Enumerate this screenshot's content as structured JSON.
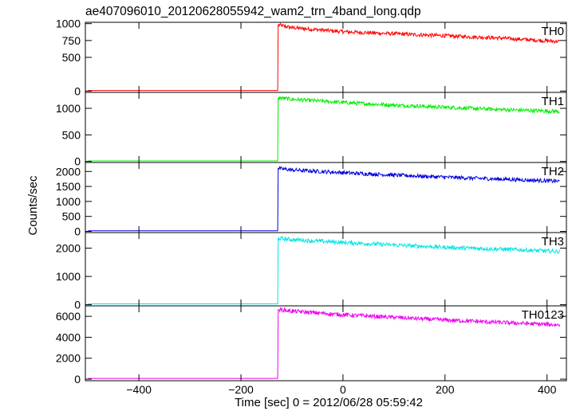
{
  "chart_data": {
    "type": "line",
    "title": "ae407096010_20120628055942_wam2_trn_4band_long.qdp",
    "xlabel": "Time [sec] 0 = 2012/06/28 05:59:42",
    "ylabel": "Counts/sec",
    "xlim": [
      -505,
      438
    ],
    "x_ticks": [
      -400,
      -200,
      0,
      200,
      400
    ],
    "grid": false,
    "trigger_time": -127,
    "panels": [
      {
        "name": "TH0",
        "color": "#ff0000",
        "ylim": [
          -20,
          1020
        ],
        "y_ticks": [
          0,
          500,
          750,
          1000
        ],
        "x": [
          -500,
          -128,
          -127,
          -100,
          0,
          100,
          200,
          300,
          400,
          425
        ],
        "y": [
          8,
          8,
          980,
          940,
          880,
          850,
          820,
          790,
          745,
          735
        ]
      },
      {
        "name": "TH1",
        "color": "#00ee00",
        "ylim": [
          -20,
          1300
        ],
        "y_ticks": [
          0,
          500,
          1000
        ],
        "x": [
          -500,
          -128,
          -127,
          -100,
          0,
          100,
          200,
          300,
          400,
          425
        ],
        "y": [
          10,
          10,
          1200,
          1170,
          1110,
          1060,
          1020,
          980,
          950,
          940
        ],
        "legend": "TH1"
      },
      {
        "name": "TH2",
        "color": "#0000dd",
        "ylim": [
          -40,
          2300
        ],
        "y_ticks": [
          0,
          500,
          1000,
          1500,
          2000
        ],
        "x": [
          -500,
          -128,
          -127,
          -100,
          0,
          100,
          200,
          300,
          400,
          425
        ],
        "y": [
          20,
          20,
          2100,
          2050,
          1960,
          1880,
          1810,
          1750,
          1690,
          1670
        ]
      },
      {
        "name": "TH3",
        "color": "#00e5e5",
        "ylim": [
          -40,
          2550
        ],
        "y_ticks": [
          0,
          1000,
          2000
        ],
        "x": [
          -500,
          -128,
          -127,
          -100,
          0,
          100,
          200,
          300,
          400,
          425
        ],
        "y": [
          30,
          30,
          2350,
          2300,
          2200,
          2110,
          2030,
          1970,
          1900,
          1880
        ]
      },
      {
        "name": "TH0123",
        "color": "#ee00ee",
        "ylim": [
          -150,
          7000
        ],
        "y_ticks": [
          0,
          2000,
          4000,
          6000
        ],
        "x": [
          -500,
          -128,
          -127,
          -100,
          0,
          100,
          200,
          300,
          400,
          425
        ],
        "y": [
          70,
          70,
          6650,
          6500,
          6150,
          5900,
          5650,
          5430,
          5230,
          5180
        ]
      }
    ]
  }
}
